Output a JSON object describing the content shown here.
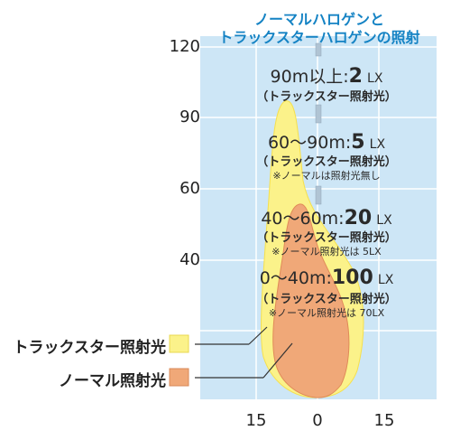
{
  "title": [
    "ノーマルハロゲンと",
    "トラックスターハロゲンの照射"
  ],
  "y_ticks": [
    "120",
    "90",
    "60",
    "40"
  ],
  "x_ticks": [
    "15",
    "0",
    "15"
  ],
  "zones": [
    {
      "range": "90m以上:",
      "lux": "2",
      "unit": "LX",
      "sub": "（トラックスター照射光）",
      "note": ""
    },
    {
      "range": "60～90m:",
      "lux": "5",
      "unit": "LX",
      "sub": "（トラックスター照射光）",
      "note": "※ノーマルは照射光無し"
    },
    {
      "range": "40～60m:",
      "lux": "20",
      "unit": "LX",
      "sub": "（トラックスター照射光）",
      "note": "※ノーマル照射光は 5LX"
    },
    {
      "range": "0～40m:",
      "lux": "100",
      "unit": "LX",
      "sub": "（トラックスター照射光）",
      "note": "※ノーマル照射光は 70LX"
    }
  ],
  "legend": [
    {
      "label": "トラックスター照射光",
      "color": "#fbf28a"
    },
    {
      "label": "ノーマル照射光",
      "color": "#f0a878"
    }
  ],
  "colors": {
    "panel": "#cde6f6",
    "grid": "#ffffff",
    "title": "#1583c4",
    "lane_marks": "#b0c4d4"
  }
}
